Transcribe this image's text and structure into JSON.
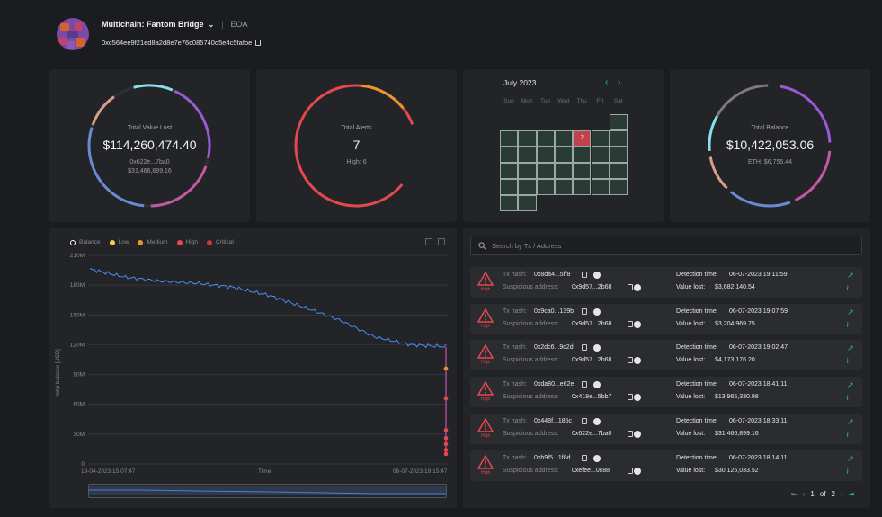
{
  "header": {
    "title": "Multichain: Fantom Bridge",
    "type_label": "EOA",
    "address": "0xc564ee9f21ed8a2d8e7e76c085740d5e4c5fafbe"
  },
  "total_value_lost": {
    "label": "Total Value Lost",
    "value": "$114,260,474.40",
    "address": "0x622e...7ba0",
    "address_value": "$31,466,899.16"
  },
  "total_alerts": {
    "label": "Total Alerts",
    "value": "7",
    "high": "High: 6"
  },
  "calendar": {
    "month": "July 2023",
    "days": [
      "Sun",
      "Mon",
      "Tue",
      "Wed",
      "Thu",
      "Fri",
      "Sat"
    ],
    "highlight_count": "7"
  },
  "total_balance": {
    "label": "Total Balance",
    "value": "$10,422,053.06",
    "eth": "ETH: $6,755.44"
  },
  "balance_chart": {
    "legend": [
      "Balance",
      "Low",
      "Medium",
      "High",
      "Critical"
    ],
    "legend_colors": [
      "#ffffff",
      "#f2d04d",
      "#e8962c",
      "#e5484d",
      "#c93a3f"
    ],
    "ylabel": "total balance [USD]",
    "xlabel": "Time",
    "y_ticks": [
      "210M",
      "180M",
      "150M",
      "120M",
      "90M",
      "60M",
      "30M",
      "0"
    ],
    "x_start": "19-04-2023 15:07:47",
    "x_end": "06-07-2023 19:15:47"
  },
  "chart_data": {
    "type": "line",
    "title": "",
    "xlabel": "Time",
    "ylabel": "total balance [USD]",
    "ylim": [
      0,
      210000000
    ],
    "x": [
      "19-04-2023 15:07:47",
      "",
      "",
      "",
      "",
      "",
      "",
      "",
      "",
      "",
      "06-07-2023 19:15:47"
    ],
    "series": [
      {
        "name": "Balance",
        "values": [
          196000000,
          188000000,
          184000000,
          182000000,
          178000000,
          170000000,
          158000000,
          145000000,
          128000000,
          120000000,
          118000000
        ]
      }
    ]
  },
  "search": {
    "placeholder": "Search by Tx / Address"
  },
  "alerts": [
    {
      "severity": "High",
      "tx_label": "Tx hash:",
      "tx": "0x8da4...5ff8",
      "addr_label": "Suspicious address:",
      "addr": "0x9d57...2b68",
      "time_label": "Detection time:",
      "time": "06-07-2023 19:11:59",
      "lost_label": "Value lost:",
      "lost": "$3,682,140.54"
    },
    {
      "severity": "High",
      "tx_label": "Tx hash:",
      "tx": "0x9ca0...139b",
      "addr_label": "Suspicious address:",
      "addr": "0x9d57...2b68",
      "time_label": "Detection time:",
      "time": "06-07-2023 19:07:59",
      "lost_label": "Value lost:",
      "lost": "$3,204,969.75"
    },
    {
      "severity": "High",
      "tx_label": "Tx hash:",
      "tx": "0x2dc6...9c2d",
      "addr_label": "Suspicious address:",
      "addr": "0x9d57...2b68",
      "time_label": "Detection time:",
      "time": "06-07-2023 19:02:47",
      "lost_label": "Value lost:",
      "lost": "$4,173,176.20"
    },
    {
      "severity": "High",
      "tx_label": "Tx hash:",
      "tx": "0xda80...e62e",
      "addr_label": "Suspicious address:",
      "addr": "0x418e...5bb7",
      "time_label": "Detection time:",
      "time": "06-07-2023 18:41:11",
      "lost_label": "Value lost:",
      "lost": "$13,965,330.98"
    },
    {
      "severity": "High",
      "tx_label": "Tx hash:",
      "tx": "0x448f...185c",
      "addr_label": "Suspicious address:",
      "addr": "0x622e...7ba0",
      "time_label": "Detection time:",
      "time": "06-07-2023 18:33:11",
      "lost_label": "Value lost:",
      "lost": "$31,466,899.16"
    },
    {
      "severity": "High",
      "tx_label": "Tx hash:",
      "tx": "0xb9f5...1f8d",
      "addr_label": "Suspicious address:",
      "addr": "0xefee...0c88",
      "time_label": "Detection time:",
      "time": "06-07-2023 18:14:11",
      "lost_label": "Value lost:",
      "lost": "$30,126,033.52"
    }
  ],
  "pagination": {
    "current": "1",
    "of": "of",
    "total": "2"
  }
}
